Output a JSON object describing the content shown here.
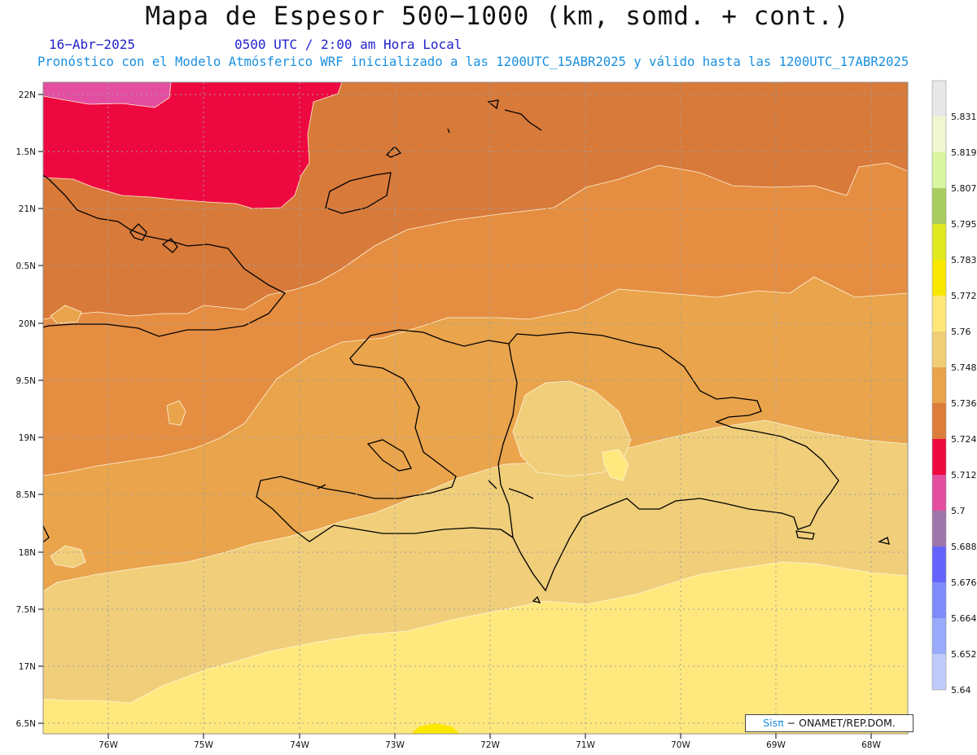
{
  "title": "Mapa de Espesor 500−1000 (km, somd. + cont.)",
  "date": "16−Abr−2025",
  "time": "0500 UTC / 2:00 am Hora Local",
  "forecast_info": "Pronóstico con el Modelo Atmósferico WRF inicializado a las 1200UTC_15ABR2025 y válido hasta las  1200UTC_17ABR2025",
  "credit": {
    "brand": "Sisπ",
    "text": "− ONAMET/REP.DOM."
  },
  "lat_labels": [
    "22N",
    "1.5N",
    "21N",
    "0.5N",
    "20N",
    "9.5N",
    "19N",
    "8.5N",
    "18N",
    "7.5N",
    "17N",
    "6.5N"
  ],
  "lon_labels": [
    "76W",
    "75W",
    "74W",
    "73W",
    "72W",
    "71W",
    "70W",
    "69W",
    "68W"
  ],
  "colorbar": {
    "labels": [
      "5.831",
      "5.819",
      "5.807",
      "5.795",
      "5.783",
      "5.772",
      "5.76",
      "5.748",
      "5.736",
      "5.724",
      "5.712",
      "5.7",
      "5.688",
      "5.676",
      "5.664",
      "5.652",
      "5.64"
    ],
    "colors": [
      "#e8e8e8",
      "#f0f6d0",
      "#daf5a0",
      "#a8cc60",
      "#e0e820",
      "#f8e800",
      "#ffe878",
      "#f0ce78",
      "#e9a34a",
      "#dc7d3b",
      "#ee0840",
      "#e34ea0",
      "#9f76ac",
      "#6464fa",
      "#7e8cfa",
      "#98aafa",
      "#c0caf8"
    ]
  },
  "fill_colors": {
    "red": "#ee0840",
    "magenta": "#e34ea0",
    "dark_orange": "#d87a3a",
    "orange": "#e58e42",
    "light_orange": "#e9a44c",
    "tan": "#f0ce7a",
    "yellow": "#ffe97e",
    "bright_yellow": "#ffe800"
  }
}
